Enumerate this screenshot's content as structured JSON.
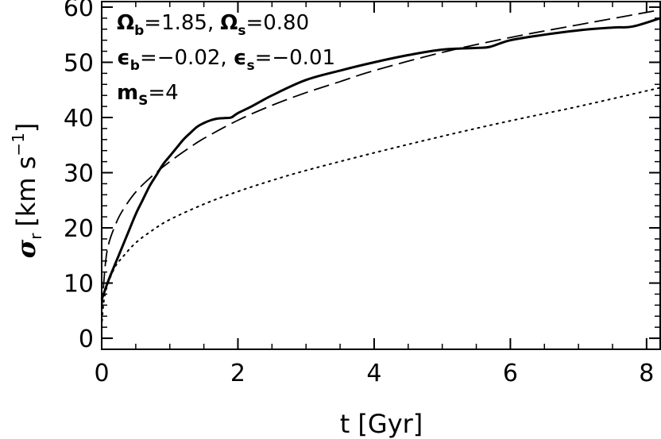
{
  "chart_data": {
    "type": "line",
    "xlabel": "t [Gyr]",
    "ylabel": "σ_r [km s^-1]",
    "xlim": [
      0,
      8.2
    ],
    "ylim": [
      -2,
      61
    ],
    "xticks": [
      0,
      2,
      4,
      6,
      8
    ],
    "yticks": [
      0,
      10,
      20,
      30,
      40,
      50,
      60
    ],
    "grid": false,
    "annotations": [
      {
        "symbol": "Ω",
        "sub": "b",
        "eq": "=1.85,"
      },
      {
        "symbol": "Ω",
        "sub": "s",
        "eq": "=0.80"
      },
      {
        "symbol": "ϵ",
        "sub": "b",
        "eq": "=−0.02,"
      },
      {
        "symbol": "ϵ",
        "sub": "s",
        "eq": "=−0.01"
      },
      {
        "symbol": "m",
        "sub": "S",
        "eq": "=4"
      }
    ],
    "series": [
      {
        "style": "solid",
        "x": [
          0.0,
          0.1,
          0.2,
          0.3,
          0.4,
          0.5,
          0.6,
          0.7,
          0.8,
          0.9,
          1.0,
          1.1,
          1.2,
          1.3,
          1.4,
          1.5,
          1.6,
          1.7,
          1.8,
          1.9,
          2.0,
          2.2,
          2.5,
          3.0,
          3.5,
          4.0,
          4.5,
          5.0,
          5.5,
          5.7,
          6.0,
          6.5,
          7.0,
          7.5,
          7.8,
          8.2
        ],
        "y": [
          7,
          10.5,
          13.5,
          16.5,
          19.5,
          22.5,
          25,
          27.5,
          29.5,
          31.5,
          33,
          34.5,
          36,
          37.2,
          38.3,
          39,
          39.5,
          39.8,
          39.9,
          40,
          40.8,
          42,
          44,
          46.8,
          48.5,
          50,
          51.3,
          52.3,
          52.6,
          52.8,
          54,
          55,
          55.8,
          56.3,
          56.5,
          58
        ]
      },
      {
        "style": "dashed",
        "x": [
          0.0,
          0.05,
          0.1,
          0.2,
          0.3,
          0.5,
          0.75,
          1.0,
          1.25,
          1.5,
          2.0,
          2.5,
          3.0,
          3.5,
          4.0,
          5.0,
          6.0,
          7.0,
          8.2
        ],
        "y": [
          5,
          13,
          17,
          20.5,
          23,
          26.5,
          29.5,
          32,
          34.2,
          36.2,
          39.5,
          42.2,
          44.5,
          46.5,
          48.5,
          51.8,
          54.5,
          56.8,
          59.5
        ]
      },
      {
        "style": "dotted",
        "x": [
          0.0,
          0.02,
          0.05,
          0.1,
          0.2,
          0.3,
          0.5,
          0.75,
          1.0,
          1.5,
          2.0,
          2.5,
          3.0,
          4.0,
          5.0,
          6.0,
          7.0,
          8.2
        ],
        "y": [
          2,
          5.5,
          8,
          10.2,
          13,
          14.6,
          17.3,
          19.6,
          21.5,
          24.3,
          26.6,
          28.6,
          30.4,
          33.6,
          36.6,
          39.4,
          42,
          45.4
        ]
      }
    ]
  }
}
